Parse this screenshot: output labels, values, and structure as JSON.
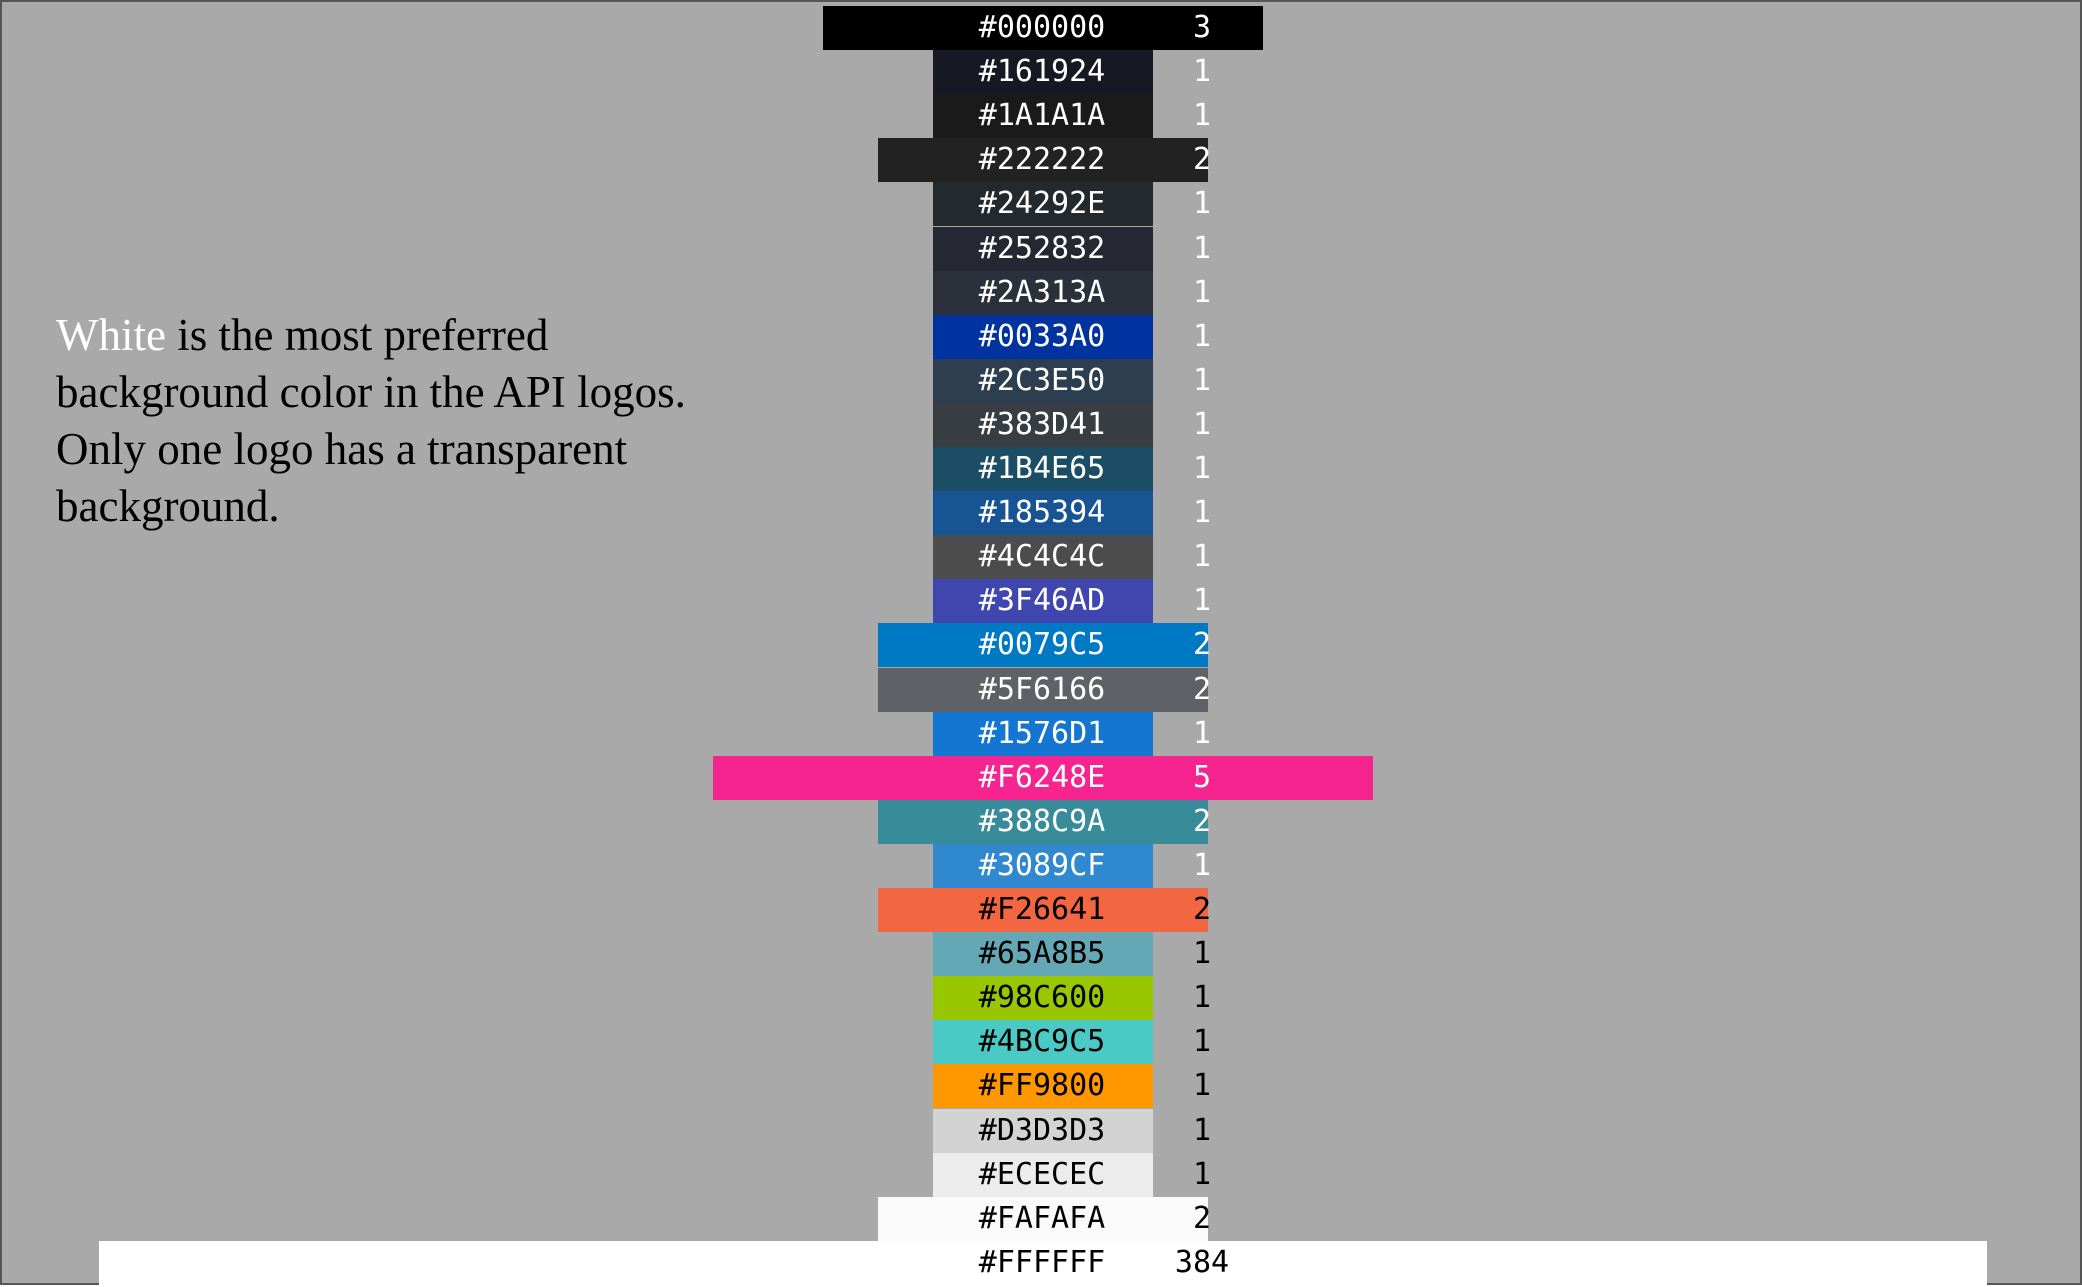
{
  "annotation": {
    "highlight": "White",
    "rest": " is the most preferred background color in the API logos. Only one logo has a transparent background."
  },
  "chart_data": {
    "type": "bar",
    "orientation": "horizontal-centered",
    "categories": [
      "#000000",
      "#161924",
      "#1A1A1A",
      "#222222",
      "#24292E",
      "#252832",
      "#2A313A",
      "#0033A0",
      "#2C3E50",
      "#383D41",
      "#1B4E65",
      "#185394",
      "#4C4C4C",
      "#3F46AD",
      "#0079C5",
      "#5F6166",
      "#1576D1",
      "#F6248E",
      "#388C9A",
      "#3089CF",
      "#F26641",
      "#65A8B5",
      "#98C600",
      "#4BC9C5",
      "#FF9800",
      "#D3D3D3",
      "#ECECEC",
      "#FAFAFA",
      "#FFFFFF"
    ],
    "values": [
      3,
      1,
      1,
      2,
      1,
      1,
      1,
      1,
      1,
      1,
      1,
      1,
      1,
      1,
      2,
      2,
      1,
      5,
      2,
      1,
      2,
      1,
      1,
      1,
      1,
      1,
      1,
      2,
      384
    ],
    "label_colors": [
      "#ffffff",
      "#ffffff",
      "#ffffff",
      "#ffffff",
      "#ffffff",
      "#ffffff",
      "#ffffff",
      "#ffffff",
      "#ffffff",
      "#ffffff",
      "#ffffff",
      "#ffffff",
      "#ffffff",
      "#ffffff",
      "#ffffff",
      "#ffffff",
      "#ffffff",
      "#ffffff",
      "#ffffff",
      "#ffffff",
      "#000000",
      "#000000",
      "#000000",
      "#000000",
      "#000000",
      "#000000",
      "#000000",
      "#000000",
      "#000000"
    ],
    "background": "#a9a9a9"
  }
}
